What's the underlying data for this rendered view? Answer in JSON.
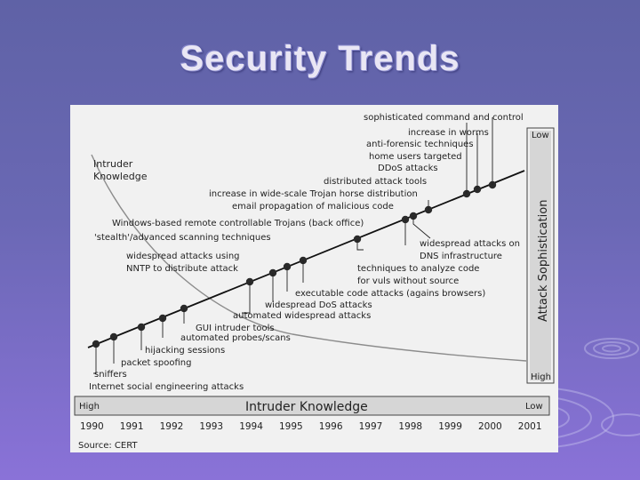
{
  "title": "Security Trends",
  "diagram": {
    "curve_label": [
      "Intruder",
      "Knowledge"
    ],
    "right_axis": {
      "label": "Attack Sophistication",
      "top": "Low",
      "bottom": "High"
    },
    "bottom_bar": {
      "label": "Intruder Knowledge",
      "left": "High",
      "right": "Low"
    },
    "years": [
      "1990",
      "1991",
      "1992",
      "1993",
      "1994",
      "1995",
      "1996",
      "1997",
      "1998",
      "1999",
      "2000",
      "2001"
    ],
    "source": "Source: CERT",
    "attacks_left": [
      "Internet social engineering attacks",
      "sniffers",
      "packet spoofing",
      "hijacking sessions",
      "automated probes/scans",
      "GUI intruder tools",
      "automated widespread attacks",
      "widespread DoS attacks",
      "executable code attacks (agains browsers)",
      "widespread attacks using",
      "NNTP to distribute attack",
      "'stealth'/advanced scanning techniques",
      "Windows-based remote controllable Trojans (back office)",
      "email propagation of malicious code",
      "increase in wide-scale Trojan horse distribution",
      "distributed attack tools",
      "DDoS attacks",
      "home users targeted",
      "anti-forensic techniques",
      "increase in worms",
      "sophisticated command and control"
    ],
    "attacks_right": [
      "widespread attacks on",
      "DNS infrastructure",
      "techniques to analyze code",
      "for vuls without source"
    ]
  }
}
